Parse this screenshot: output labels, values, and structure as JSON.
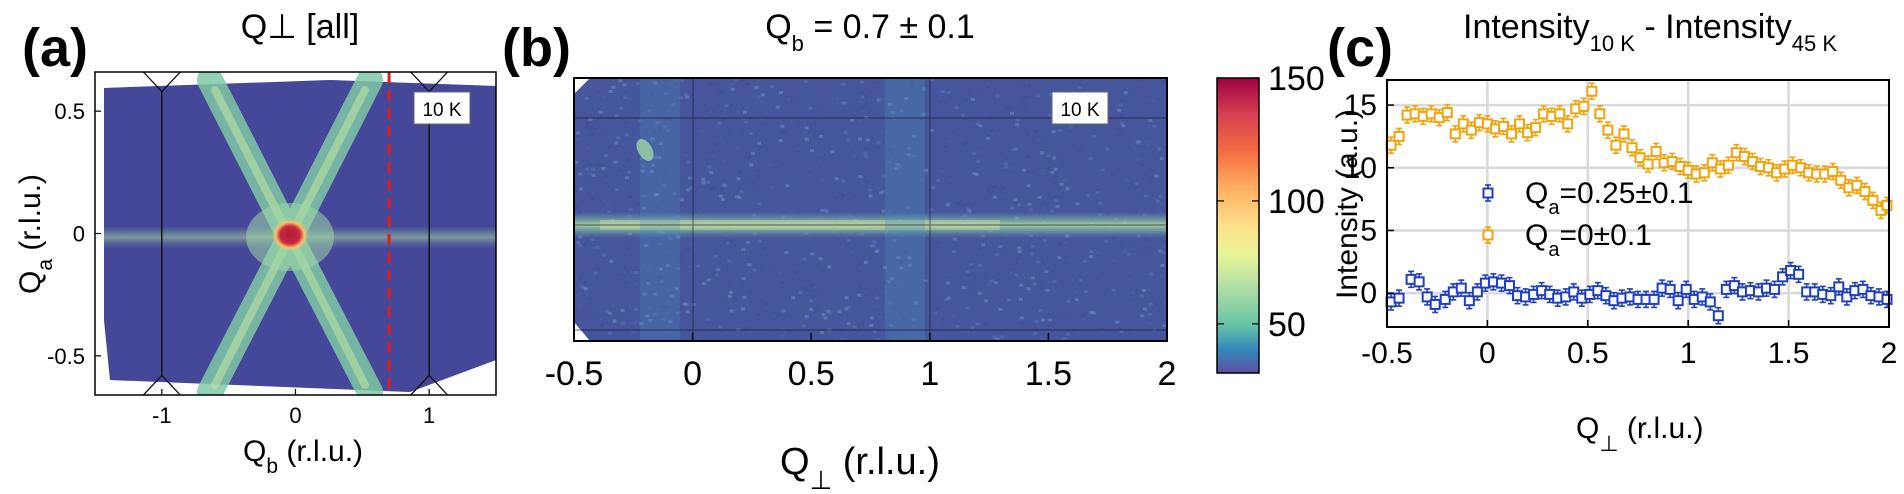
{
  "chart_data": [
    {
      "panel": "(a)",
      "type": "heatmap",
      "title": "Q⊥ [all]",
      "xlabel": {
        "main": "Q",
        "sub": "b",
        "rest": " (r.l.u.)"
      },
      "ylabel": {
        "main": "Q",
        "sub": "a",
        "rest": " (r.l.u.)"
      },
      "xlim": [
        -1.5,
        1.5
      ],
      "ylim": [
        -0.66,
        0.66
      ],
      "xticks": [
        -1,
        0,
        1
      ],
      "xticklabels": [
        "-1",
        "0",
        "1"
      ],
      "yticks": [
        0.5,
        0,
        -0.5
      ],
      "yticklabels": [
        "0.5",
        "0",
        "-0.5"
      ],
      "annotation": "10 K",
      "cut_line_x": 0.7,
      "cut_line_color": "#e41a1c",
      "zone_boundary_color": "#111111"
    },
    {
      "panel": "(b)",
      "type": "heatmap",
      "title": {
        "main": "Q",
        "sub": "b",
        "rest": " = 0.7 ± 0.1"
      },
      "xlabel": {
        "main": "Q",
        "sub": "⊥",
        "rest": " (r.l.u.)"
      },
      "xlim": [
        -0.5,
        2
      ],
      "xticks": [
        -0.5,
        0,
        0.5,
        1,
        1.5,
        2
      ],
      "xticklabels": [
        "-0.5",
        "0",
        "0.5",
        "1",
        "1.5",
        "2"
      ],
      "annotation": "10 K",
      "colorbar": {
        "ticks": [
          150,
          100,
          50
        ],
        "ticklabels": [
          "150",
          "100",
          "50"
        ],
        "range": [
          30,
          150
        ]
      }
    },
    {
      "panel": "(c)",
      "type": "scatter",
      "title": {
        "a": "Intensity",
        "a_sub": "10 K",
        "sep": " - ",
        "b": "Intensity",
        "b_sub": "45 K"
      },
      "xlabel": {
        "main": "Q",
        "sub": "⊥",
        "rest": " (r.l.u.)"
      },
      "ylabel": "Intensity (a.u.)",
      "xlim": [
        -0.5,
        2
      ],
      "ylim": [
        -2.7,
        17
      ],
      "xticks": [
        -0.5,
        0,
        0.5,
        1,
        1.5,
        2
      ],
      "xticklabels": [
        "-0.5",
        "0",
        "0.5",
        "1",
        "1.5",
        "2"
      ],
      "yticks": [
        15,
        10,
        5,
        0
      ],
      "yticklabels": [
        "15",
        "10",
        "5",
        "0"
      ],
      "grid": true,
      "legend_placement": "center-left",
      "series": [
        {
          "name": {
            "main": "Q",
            "sub": "a",
            "rest": "=0.25±0.1"
          },
          "color": "#1f3fbf",
          "x": [
            -0.48,
            -0.44,
            -0.38,
            -0.34,
            -0.3,
            -0.26,
            -0.21,
            -0.17,
            -0.13,
            -0.09,
            -0.05,
            -0.01,
            0.03,
            0.07,
            0.11,
            0.15,
            0.19,
            0.23,
            0.27,
            0.31,
            0.35,
            0.39,
            0.43,
            0.47,
            0.51,
            0.55,
            0.59,
            0.63,
            0.67,
            0.71,
            0.75,
            0.79,
            0.83,
            0.87,
            0.91,
            0.95,
            0.99,
            1.03,
            1.07,
            1.11,
            1.15,
            1.19,
            1.23,
            1.27,
            1.31,
            1.35,
            1.39,
            1.43,
            1.47,
            1.51,
            1.55,
            1.59,
            1.63,
            1.67,
            1.71,
            1.75,
            1.79,
            1.83,
            1.87,
            1.91,
            1.95,
            1.99
          ],
          "y": [
            -0.7,
            -0.4,
            1.1,
            0.9,
            -0.3,
            -0.9,
            -0.5,
            0.1,
            0.4,
            -0.6,
            0.1,
            0.8,
            0.9,
            0.8,
            0.6,
            -0.2,
            -0.3,
            -0.1,
            0.2,
            -0.1,
            -0.4,
            -0.3,
            0.1,
            -0.4,
            -0.1,
            0.2,
            -0.2,
            -0.6,
            -0.4,
            -0.3,
            -0.5,
            -0.5,
            -0.5,
            0.4,
            0.3,
            -0.6,
            0.3,
            -0.5,
            -0.3,
            -0.7,
            -1.8,
            0.3,
            0.6,
            0.1,
            0.2,
            0.1,
            0.4,
            0.3,
            1.3,
            1.8,
            1.5,
            0.1,
            0.1,
            -0.1,
            -0.2,
            0.5,
            -0.3,
            0.2,
            0.3,
            -0.2,
            -0.3,
            -0.5
          ]
        },
        {
          "name": {
            "main": "Q",
            "sub": "a",
            "rest": "=0±0.1"
          },
          "color": "#f0a30a",
          "x": [
            -0.48,
            -0.44,
            -0.4,
            -0.36,
            -0.32,
            -0.28,
            -0.24,
            -0.2,
            -0.16,
            -0.12,
            -0.08,
            -0.04,
            0.0,
            0.04,
            0.08,
            0.12,
            0.16,
            0.2,
            0.24,
            0.28,
            0.32,
            0.36,
            0.4,
            0.44,
            0.48,
            0.52,
            0.56,
            0.6,
            0.64,
            0.68,
            0.72,
            0.76,
            0.8,
            0.84,
            0.88,
            0.92,
            0.96,
            1.0,
            1.04,
            1.08,
            1.12,
            1.16,
            1.2,
            1.24,
            1.28,
            1.32,
            1.36,
            1.4,
            1.44,
            1.48,
            1.52,
            1.56,
            1.6,
            1.64,
            1.68,
            1.72,
            1.76,
            1.8,
            1.84,
            1.88,
            1.92,
            1.96,
            1.99
          ],
          "y": [
            11.8,
            12.5,
            14.2,
            14.3,
            14.1,
            14.3,
            14.0,
            14.4,
            12.7,
            13.5,
            13.0,
            13.6,
            13.5,
            13.1,
            13.3,
            12.7,
            13.5,
            12.8,
            13.2,
            14.3,
            14.1,
            14.3,
            13.5,
            14.7,
            14.9,
            16.1,
            14.3,
            13.0,
            11.8,
            12.7,
            11.6,
            10.8,
            10.3,
            11.3,
            10.4,
            10.5,
            10.1,
            9.8,
            9.5,
            9.6,
            10.4,
            9.9,
            10.2,
            11.2,
            10.9,
            10.5,
            10.1,
            10.0,
            9.6,
            9.9,
            10.2,
            10.0,
            9.6,
            9.5,
            9.5,
            9.7,
            9.0,
            8.4,
            8.6,
            8.1,
            7.4,
            6.6,
            7.0
          ]
        }
      ]
    }
  ]
}
